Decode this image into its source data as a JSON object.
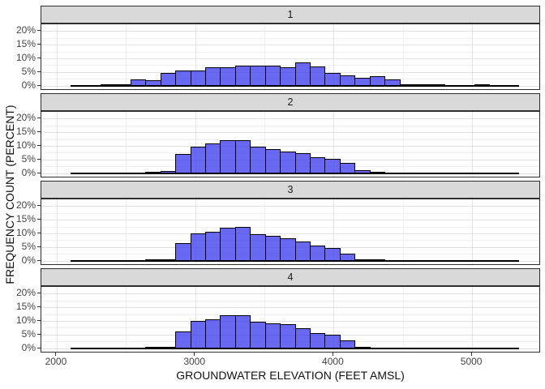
{
  "chart_data": {
    "type": "bar",
    "subtype": "faceted-histogram",
    "title": "",
    "xlabel": "GROUNDWATER ELEVATION (FEET AMSL)",
    "ylabel": "FREQUENCY COUNT (PERCENT)",
    "facets": [
      {
        "label": "1",
        "values_percent": [
          0.1,
          0.1,
          0.2,
          0.7,
          2.5,
          2.1,
          4.7,
          5.6,
          5.6,
          6.8,
          6.8,
          7.4,
          7.4,
          7.4,
          6.7,
          8.7,
          7.0,
          4.8,
          3.8,
          2.9,
          3.5,
          2.3,
          0.7,
          0.3,
          0.2,
          0.1,
          0.1,
          0.25,
          0.1,
          0.05
        ]
      },
      {
        "label": "2",
        "values_percent": [
          0.05,
          0.05,
          0.05,
          0.05,
          0.1,
          0.2,
          0.8,
          7.1,
          9.9,
          10.9,
          12.2,
          12.2,
          9.9,
          8.8,
          8.1,
          7.4,
          6.0,
          5.5,
          4.0,
          1.1,
          0.3,
          0.1,
          0.05,
          0.05,
          0.05,
          0.05,
          0.05,
          0.05,
          0.05,
          0.05
        ]
      },
      {
        "label": "3",
        "values_percent": [
          0.05,
          0.05,
          0.05,
          0.05,
          0.1,
          0.15,
          0.7,
          6.5,
          10.2,
          10.8,
          12.1,
          12.4,
          9.7,
          9.2,
          8.3,
          7.0,
          5.6,
          4.7,
          2.8,
          0.7,
          0.2,
          0.05,
          0.05,
          0.05,
          0.05,
          0.05,
          0.05,
          0.05,
          0.05,
          0.05
        ]
      },
      {
        "label": "4",
        "values_percent": [
          0.05,
          0.05,
          0.05,
          0.05,
          0.1,
          0.2,
          0.7,
          6.3,
          10.0,
          10.8,
          12.3,
          12.3,
          9.9,
          9.2,
          9.0,
          7.5,
          5.8,
          5.0,
          2.9,
          0.3,
          0.1,
          0.05,
          0.05,
          0.05,
          0.05,
          0.05,
          0.05,
          0.05,
          0.05,
          0.05
        ]
      }
    ],
    "bin_start": 2100,
    "bin_width": 108,
    "bin_count": 30,
    "baseline_extent": [
      2100,
      5340
    ],
    "x_ticks": [
      2000,
      3000,
      4000,
      5000
    ],
    "x_minor_gridlines": [
      2500,
      3500,
      4500,
      5500
    ],
    "y_ticks": [
      "0%",
      "5%",
      "10%",
      "15%",
      "20%"
    ],
    "y_tick_values": [
      0,
      5,
      10,
      15,
      20
    ],
    "y_minor_gridlines": [
      2.5,
      7.5,
      12.5,
      17.5
    ],
    "xlim": [
      1889,
      5497
    ],
    "ylim": [
      -1.9,
      22.5
    ],
    "grid": "major+minor",
    "legend": "none",
    "colors": {
      "bar_fill": "#3E3EF0",
      "bar_fill_alpha": 0.78,
      "bar_stroke": "#000000",
      "strip_bg": "#D9D9D9",
      "panel_border": "#2E2E2E",
      "grid_major": "#E2E2E2",
      "grid_minor": "#F1F1F1",
      "tick_text": "#444444",
      "title_text": "#111111"
    }
  }
}
